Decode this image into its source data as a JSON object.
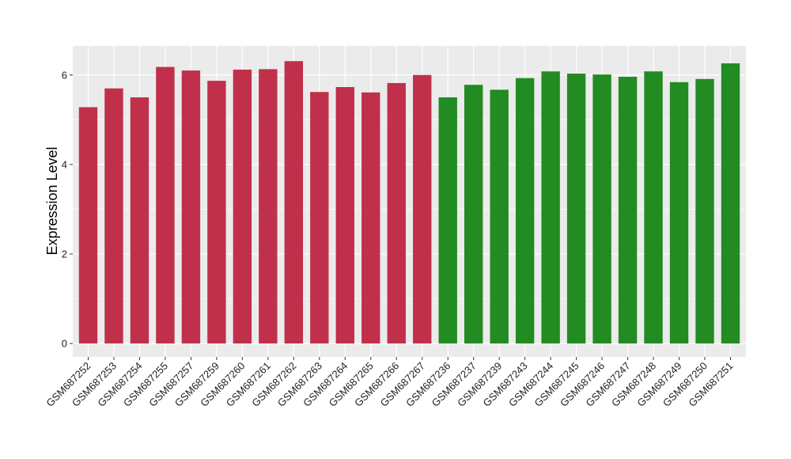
{
  "chart_data": {
    "type": "bar",
    "title": "",
    "xlabel": "",
    "ylabel": "Expression Level",
    "ylim": [
      -0.3,
      6.65
    ],
    "yticks": [
      0,
      2,
      4,
      6
    ],
    "grid": true,
    "legend": "none",
    "categories": [
      "GSM687252",
      "GSM687253",
      "GSM687254",
      "GSM687255",
      "GSM687257",
      "GSM687259",
      "GSM687260",
      "GSM687261",
      "GSM687262",
      "GSM687263",
      "GSM687264",
      "GSM687265",
      "GSM687266",
      "GSM687267",
      "GSM687236",
      "GSM687237",
      "GSM687239",
      "GSM687243",
      "GSM687244",
      "GSM687245",
      "GSM687246",
      "GSM687247",
      "GSM687248",
      "GSM687249",
      "GSM687250",
      "GSM687251"
    ],
    "values": [
      5.28,
      5.7,
      5.5,
      6.18,
      6.1,
      5.87,
      6.12,
      6.13,
      6.31,
      5.62,
      5.73,
      5.61,
      5.82,
      6.0,
      5.5,
      5.78,
      5.67,
      5.93,
      6.08,
      6.03,
      6.01,
      5.96,
      6.08,
      5.84,
      5.91,
      6.26
    ],
    "group_colors": [
      "#c0304a",
      "#c0304a",
      "#c0304a",
      "#c0304a",
      "#c0304a",
      "#c0304a",
      "#c0304a",
      "#c0304a",
      "#c0304a",
      "#c0304a",
      "#c0304a",
      "#c0304a",
      "#c0304a",
      "#c0304a",
      "#228b22",
      "#228b22",
      "#228b22",
      "#228b22",
      "#228b22",
      "#228b22",
      "#228b22",
      "#228b22",
      "#228b22",
      "#228b22",
      "#228b22",
      "#228b22"
    ],
    "panel_background": "#ebebeb",
    "grid_color": "#ffffff"
  }
}
